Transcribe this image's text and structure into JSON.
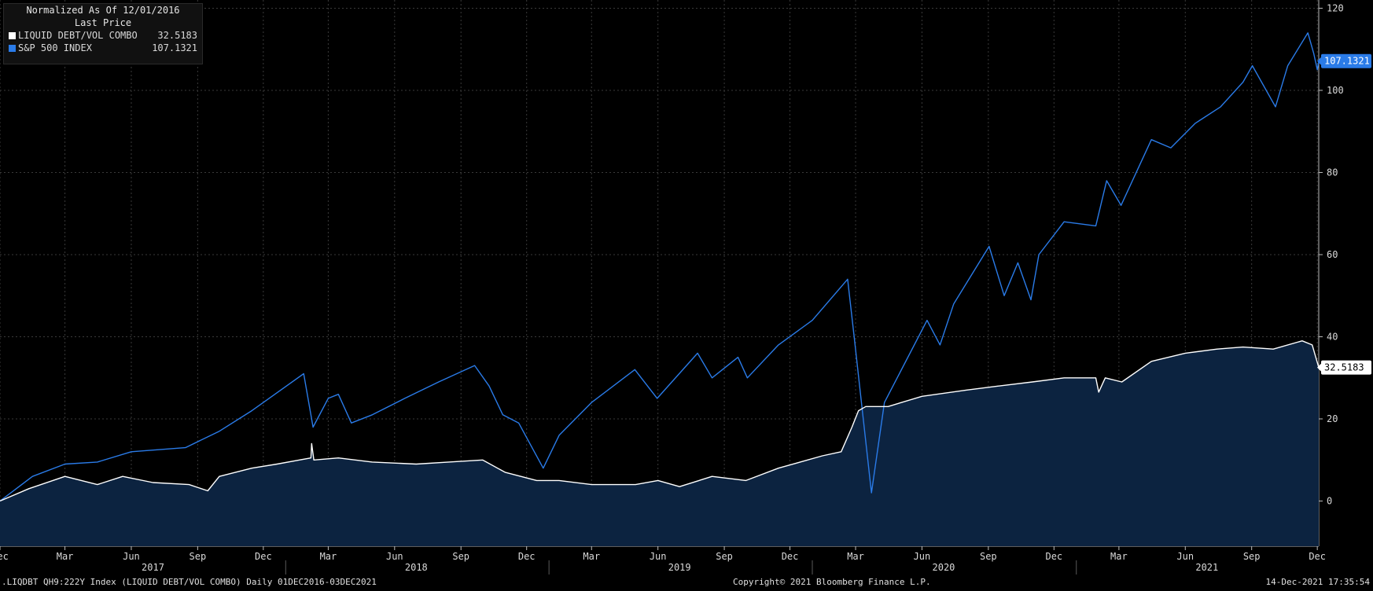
{
  "legend": {
    "header1": "Normalized As Of 12/01/2016",
    "header2": "Last Price",
    "entries": [
      {
        "name": "LIQUID DEBT/VOL COMBO",
        "value": "32.5183",
        "color": "#ffffff"
      },
      {
        "name": "S&P 500 INDEX",
        "value": "107.1321",
        "color": "#2a7be8"
      }
    ]
  },
  "footer": {
    "left": ".LIQDBT QH9:222Y Index (LIQUID DEBT/VOL COMBO)  Daily 01DEC2016-03DEC2021",
    "center": "Copyright© 2021 Bloomberg Finance L.P.",
    "right": "14-Dec-2021 17:35:54"
  },
  "chart_data": {
    "type": "line",
    "title": "",
    "xlabel": "",
    "ylabel": "",
    "x_range": [
      "2016-12-01",
      "2021-12-03"
    ],
    "ylim": [
      -11,
      122
    ],
    "y_ticks": [
      0,
      20,
      40,
      60,
      80,
      100,
      120
    ],
    "grid": true,
    "legend_position": "top-left",
    "month_ticks": [
      "Dec",
      "Mar",
      "Jun",
      "Sep",
      "Dec",
      "Mar",
      "Jun",
      "Sep",
      "Dec",
      "Mar",
      "Jun",
      "Sep",
      "Dec",
      "Mar",
      "Jun",
      "Sep",
      "Dec",
      "Mar",
      "Jun",
      "Sep",
      "Dec"
    ],
    "month_tick_dates": [
      "2016-12-01",
      "2017-03-01",
      "2017-06-01",
      "2017-09-01",
      "2017-12-01",
      "2018-03-01",
      "2018-06-01",
      "2018-09-01",
      "2018-12-01",
      "2019-03-01",
      "2019-06-01",
      "2019-09-01",
      "2019-12-01",
      "2020-03-01",
      "2020-06-01",
      "2020-09-01",
      "2020-12-01",
      "2021-03-01",
      "2021-06-01",
      "2021-09-01",
      "2021-12-01"
    ],
    "year_labels": [
      {
        "label": "2017",
        "date": "2017-07-01"
      },
      {
        "label": "2018",
        "date": "2018-07-01"
      },
      {
        "label": "2019",
        "date": "2019-07-01"
      },
      {
        "label": "2020",
        "date": "2020-07-01"
      },
      {
        "label": "2021",
        "date": "2021-07-01"
      }
    ],
    "series": [
      {
        "name": "LIQUID DEBT/VOL COMBO",
        "color": "#ffffff",
        "fill": "#0c2340",
        "last": "32.5183",
        "last_value": 32.5183,
        "points": [
          [
            "2016-12-01",
            0
          ],
          [
            "2017-01-10",
            3
          ],
          [
            "2017-03-01",
            6
          ],
          [
            "2017-04-15",
            4
          ],
          [
            "2017-05-20",
            6
          ],
          [
            "2017-07-01",
            4.5
          ],
          [
            "2017-08-20",
            4
          ],
          [
            "2017-09-15",
            2.5
          ],
          [
            "2017-10-01",
            6
          ],
          [
            "2017-11-15",
            8
          ],
          [
            "2017-12-20",
            9
          ],
          [
            "2018-01-20",
            10
          ],
          [
            "2018-02-05",
            10.5
          ],
          [
            "2018-02-06",
            14
          ],
          [
            "2018-02-09",
            10
          ],
          [
            "2018-03-15",
            10.5
          ],
          [
            "2018-05-01",
            9.5
          ],
          [
            "2018-07-01",
            9
          ],
          [
            "2018-08-15",
            9.5
          ],
          [
            "2018-10-01",
            10
          ],
          [
            "2018-11-01",
            7
          ],
          [
            "2018-12-15",
            5
          ],
          [
            "2019-01-15",
            5
          ],
          [
            "2019-03-01",
            4
          ],
          [
            "2019-05-01",
            4
          ],
          [
            "2019-06-01",
            5
          ],
          [
            "2019-07-01",
            3.5
          ],
          [
            "2019-08-15",
            6
          ],
          [
            "2019-10-01",
            5
          ],
          [
            "2019-11-15",
            8
          ],
          [
            "2020-01-15",
            11
          ],
          [
            "2020-02-10",
            12
          ],
          [
            "2020-02-25",
            18
          ],
          [
            "2020-03-05",
            22
          ],
          [
            "2020-03-15",
            23
          ],
          [
            "2020-04-15",
            23
          ],
          [
            "2020-06-01",
            25.5
          ],
          [
            "2020-08-01",
            27
          ],
          [
            "2020-09-15",
            28
          ],
          [
            "2020-11-01",
            29
          ],
          [
            "2020-12-15",
            30
          ],
          [
            "2021-01-28",
            30
          ],
          [
            "2021-02-01",
            26.5
          ],
          [
            "2021-02-10",
            30
          ],
          [
            "2021-03-05",
            29
          ],
          [
            "2021-04-15",
            34
          ],
          [
            "2021-06-01",
            36
          ],
          [
            "2021-07-15",
            37
          ],
          [
            "2021-08-20",
            37.5
          ],
          [
            "2021-10-01",
            37
          ],
          [
            "2021-11-10",
            39
          ],
          [
            "2021-11-24",
            38
          ],
          [
            "2021-12-03",
            32.5183
          ]
        ]
      },
      {
        "name": "S&P 500 INDEX",
        "color": "#2a7be8",
        "last": "107.1321",
        "last_value": 107.1321,
        "points": [
          [
            "2016-12-01",
            0
          ],
          [
            "2017-01-15",
            6
          ],
          [
            "2017-03-01",
            9
          ],
          [
            "2017-04-15",
            9.5
          ],
          [
            "2017-06-01",
            12
          ],
          [
            "2017-08-15",
            13
          ],
          [
            "2017-10-01",
            17
          ],
          [
            "2017-11-15",
            22
          ],
          [
            "2018-01-26",
            31
          ],
          [
            "2018-02-08",
            18
          ],
          [
            "2018-03-01",
            25
          ],
          [
            "2018-03-15",
            26
          ],
          [
            "2018-04-02",
            19
          ],
          [
            "2018-05-01",
            21
          ],
          [
            "2018-06-15",
            25
          ],
          [
            "2018-08-01",
            29
          ],
          [
            "2018-09-20",
            33
          ],
          [
            "2018-10-10",
            28
          ],
          [
            "2018-10-29",
            21
          ],
          [
            "2018-11-20",
            19
          ],
          [
            "2018-12-24",
            8
          ],
          [
            "2019-01-15",
            16
          ],
          [
            "2019-03-01",
            24
          ],
          [
            "2019-04-30",
            32
          ],
          [
            "2019-05-31",
            25
          ],
          [
            "2019-07-26",
            36
          ],
          [
            "2019-08-15",
            30
          ],
          [
            "2019-09-20",
            35
          ],
          [
            "2019-10-03",
            30
          ],
          [
            "2019-11-15",
            38
          ],
          [
            "2020-01-01",
            44
          ],
          [
            "2020-02-19",
            54
          ],
          [
            "2020-02-28",
            40
          ],
          [
            "2020-03-23",
            2
          ],
          [
            "2020-04-10",
            24
          ],
          [
            "2020-06-08",
            44
          ],
          [
            "2020-06-26",
            38
          ],
          [
            "2020-07-15",
            48
          ],
          [
            "2020-09-02",
            62
          ],
          [
            "2020-09-23",
            50
          ],
          [
            "2020-10-12",
            58
          ],
          [
            "2020-10-30",
            49
          ],
          [
            "2020-11-10",
            60
          ],
          [
            "2020-12-15",
            68
          ],
          [
            "2021-01-28",
            67
          ],
          [
            "2021-02-12",
            78
          ],
          [
            "2021-03-04",
            72
          ],
          [
            "2021-04-15",
            88
          ],
          [
            "2021-05-12",
            86
          ],
          [
            "2021-06-15",
            92
          ],
          [
            "2021-07-20",
            96
          ],
          [
            "2021-08-20",
            102
          ],
          [
            "2021-09-02",
            106
          ],
          [
            "2021-10-04",
            96
          ],
          [
            "2021-10-21",
            106
          ],
          [
            "2021-11-18",
            114
          ],
          [
            "2021-11-26",
            109
          ],
          [
            "2021-12-01",
            105
          ],
          [
            "2021-12-03",
            107.1321
          ]
        ]
      }
    ]
  }
}
